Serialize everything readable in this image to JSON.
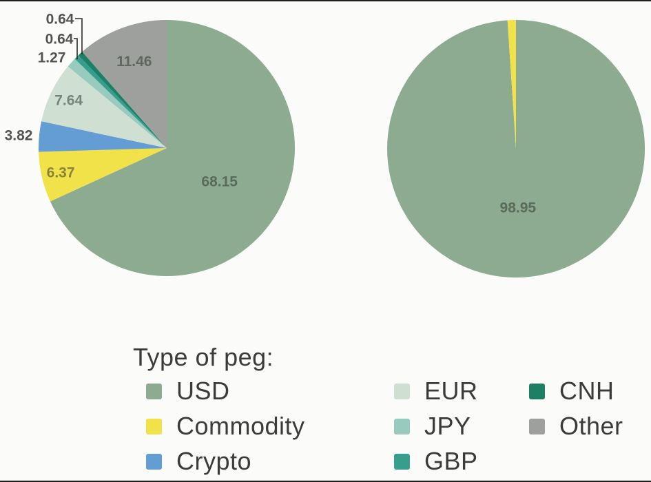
{
  "page": {
    "background": "#fbfcf9",
    "border_color": "#1f1f1f"
  },
  "legend": {
    "title": "Type of peg:",
    "columns": [
      [
        {
          "label": "USD",
          "color": "#8cab90"
        },
        {
          "label": "Commodity",
          "color": "#f2e24a"
        },
        {
          "label": "Crypto",
          "color": "#649dd3"
        }
      ],
      [
        {
          "label": "EUR",
          "color": "#cfe0d2"
        },
        {
          "label": "JPY",
          "color": "#98cabd"
        },
        {
          "label": "GBP",
          "color": "#379e8e"
        }
      ],
      [
        {
          "label": "CNH",
          "color": "#1d7f64"
        },
        {
          "label": "Other",
          "color": "#9da09c"
        }
      ]
    ]
  },
  "chart_data": [
    {
      "type": "pie",
      "name": "left-pie",
      "unit": "percent",
      "start_angle_deg": 0,
      "direction": "clockwise",
      "legend_position": "bottom",
      "slices": [
        {
          "label": "USD",
          "value": 68.15,
          "color": "#8cab90",
          "show_label": true
        },
        {
          "label": "Commodity",
          "value": 6.37,
          "color": "#f2e24a",
          "show_label": true
        },
        {
          "label": "Crypto",
          "value": 3.82,
          "color": "#649dd3",
          "show_label": true
        },
        {
          "label": "EUR",
          "value": 7.64,
          "color": "#cfe0d2",
          "show_label": true
        },
        {
          "label": "JPY",
          "value": 1.27,
          "color": "#98cabd",
          "show_label": true
        },
        {
          "label": "GBP",
          "value": 0.64,
          "color": "#379e8e",
          "show_label": true
        },
        {
          "label": "CNH",
          "value": 0.64,
          "color": "#1d7f64",
          "show_label": true
        },
        {
          "label": "Other",
          "value": 11.46,
          "color": "#9da09c",
          "show_label": true
        }
      ]
    },
    {
      "type": "pie",
      "name": "right-pie",
      "unit": "percent",
      "start_angle_deg": 0,
      "direction": "clockwise",
      "legend_position": "bottom",
      "slices": [
        {
          "label": "USD",
          "value": 98.95,
          "color": "#8cab90",
          "show_label": true
        },
        {
          "label": "Commodity",
          "value": 1.05,
          "color": "#f2e24a",
          "show_label": false
        }
      ]
    }
  ]
}
